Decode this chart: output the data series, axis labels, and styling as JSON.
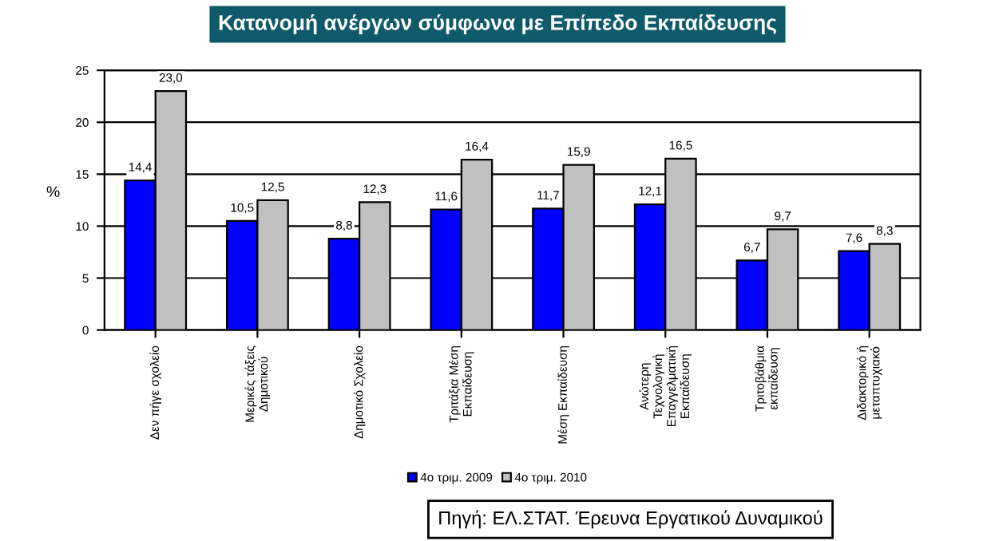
{
  "chart_data": {
    "type": "bar",
    "title": "Κατανομή ανέργων σύμφωνα με Επίπεδο Εκπαίδευσης",
    "ylabel": "%",
    "categories": [
      "Δεν πήγε σχολείο",
      "Μερικές τάξεις\nΔημοτικού",
      "Δημοτικό Σχολείο",
      "Τριτάξια Μέση\nΕκπαίδευση",
      "Μέση Εκπαίδευση",
      "Ανώτερη\nΤεχνολογική\nΕπαγγελματική\nΕκπαίδευση",
      "Τριτοβάθμια\nεκπαίδευση",
      "Διδακτορικό ή\nμεταπτυχιακό"
    ],
    "series": [
      {
        "name": "4ο τριμ. 2009",
        "color": "#0000ff",
        "values": [
          14.4,
          10.5,
          8.8,
          11.6,
          11.7,
          12.1,
          6.7,
          7.6
        ],
        "value_labels": [
          "14,4",
          "10,5",
          "8,8",
          "11,6",
          "11,7",
          "12,1",
          "6,7",
          "7,6"
        ]
      },
      {
        "name": "4ο τριμ. 2010",
        "color": "#c0c0c0",
        "values": [
          23.0,
          12.5,
          12.3,
          16.4,
          15.9,
          16.5,
          9.7,
          8.3
        ],
        "value_labels": [
          "23,0",
          "12,5",
          "12,3",
          "16,4",
          "15,9",
          "16,5",
          "9,7",
          "8,3"
        ]
      }
    ],
    "ylim": [
      0,
      25
    ],
    "yticks": [
      0,
      5,
      10,
      15,
      20,
      25
    ],
    "grid": "y",
    "legend": "bottom",
    "annotations": [
      "Πηγή: ΕΛ.ΣΤΑΤ. Έρευνα Εργατικού Δυναμικού"
    ]
  }
}
